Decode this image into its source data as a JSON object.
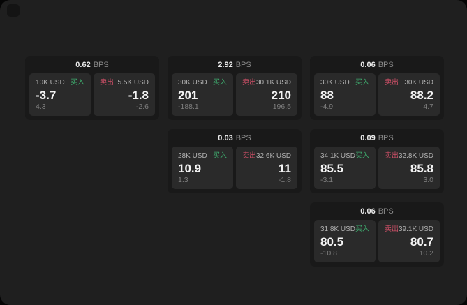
{
  "colors": {
    "buy_green": "#3eaa6d",
    "sell_red": "#cc4f66"
  },
  "cards": [
    {
      "spread": "0.62",
      "unit": "BPS",
      "buy": {
        "amount": "10K USD",
        "side": "买入",
        "price": "-3.7",
        "change": "4.3"
      },
      "sell": {
        "side": "卖出",
        "amount": "5.5K USD",
        "price": "-1.8",
        "change": "-2.6"
      }
    },
    {
      "spread": "2.92",
      "unit": "BPS",
      "buy": {
        "amount": "30K USD",
        "side": "买入",
        "price": "201",
        "change": "-188.1"
      },
      "sell": {
        "side": "卖出",
        "amount": "30.1K USD",
        "price": "210",
        "change": "196.5"
      }
    },
    {
      "spread": "0.06",
      "unit": "BPS",
      "buy": {
        "amount": "30K USD",
        "side": "买入",
        "price": "88",
        "change": "-4.9"
      },
      "sell": {
        "side": "卖出",
        "amount": "30K USD",
        "price": "88.2",
        "change": "4.7"
      }
    },
    {
      "spread": "0.03",
      "unit": "BPS",
      "buy": {
        "amount": "28K USD",
        "side": "买入",
        "price": "10.9",
        "change": "1.3"
      },
      "sell": {
        "side": "卖出",
        "amount": "32.6K USD",
        "price": "11",
        "change": "-1.8"
      }
    },
    {
      "spread": "0.09",
      "unit": "BPS",
      "buy": {
        "amount": "34.1K USD",
        "side": "买入",
        "price": "85.5",
        "change": "-3.1"
      },
      "sell": {
        "side": "卖出",
        "amount": "32.8K USD",
        "price": "85.8",
        "change": "3.0"
      }
    },
    {
      "spread": "0.06",
      "unit": "BPS",
      "buy": {
        "amount": "31.8K USD",
        "side": "买入",
        "price": "80.5",
        "change": "-10.8"
      },
      "sell": {
        "side": "卖出",
        "amount": "39.1K USD",
        "price": "80.7",
        "change": "10.2"
      }
    }
  ]
}
